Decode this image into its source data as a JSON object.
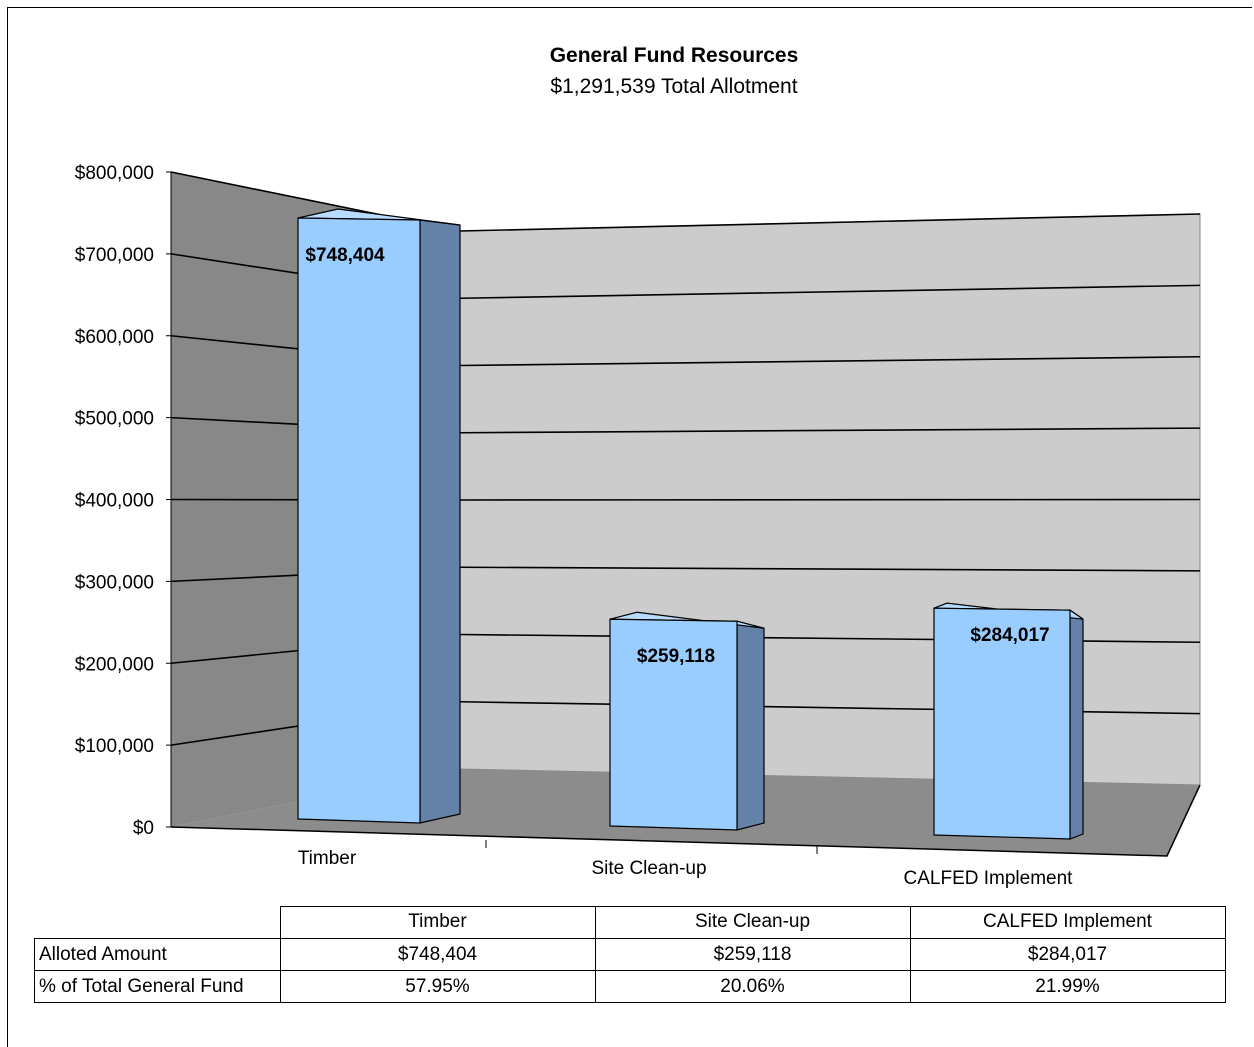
{
  "chart_data": {
    "type": "bar",
    "title": "General Fund Resources",
    "subtitle": "$1,291,539 Total Allotment",
    "categories": [
      "Timber",
      "Site Clean-up",
      "CALFED Implement"
    ],
    "values": [
      748404,
      259118,
      284017
    ],
    "data_labels": [
      "$748,404",
      "$259,118",
      "$284,017"
    ],
    "y_ticks": [
      "$0",
      "$100,000",
      "$200,000",
      "$300,000",
      "$400,000",
      "$500,000",
      "$600,000",
      "$700,000",
      "$800,000"
    ],
    "ylim": [
      0,
      800000
    ],
    "grid": true,
    "legend": "none",
    "colors": {
      "bar_front": "#99ccff",
      "bar_side": "#6482a8",
      "wall": "#cccccc",
      "side_wall": "#888888",
      "floor": "#8c8c8c"
    }
  },
  "table": {
    "columns": [
      "Timber",
      "Site Clean-up",
      "CALFED Implement"
    ],
    "rows": [
      {
        "label": "Alloted Amount",
        "values": [
          "$748,404",
          "$259,118",
          "$284,017"
        ]
      },
      {
        "label": "% of Total General Fund",
        "values": [
          "57.95%",
          "20.06%",
          "21.99%"
        ]
      }
    ]
  }
}
